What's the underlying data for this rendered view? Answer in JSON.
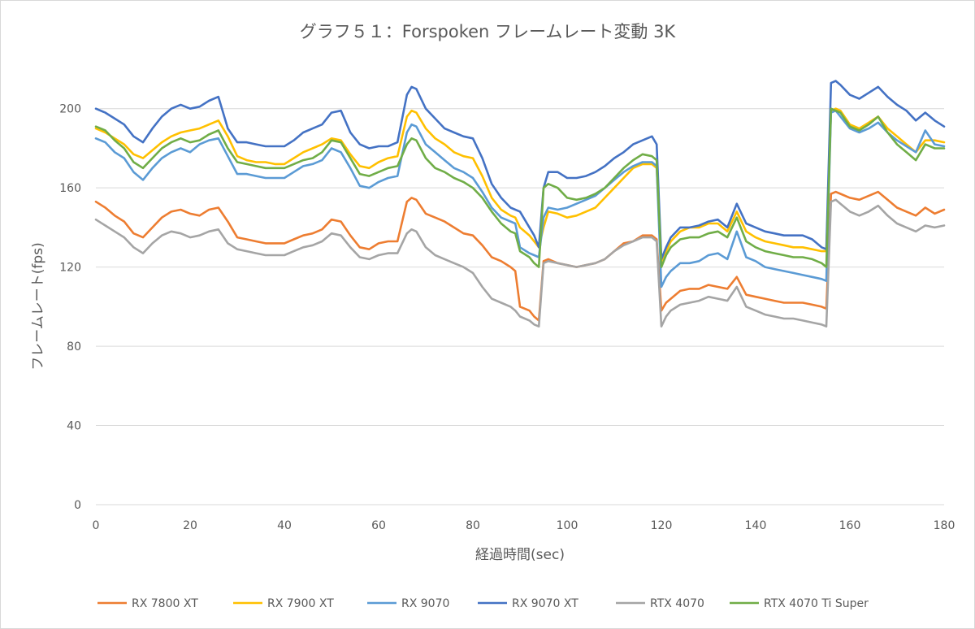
{
  "chart_data": {
    "type": "line",
    "title": "グラフ５１：Forspoken フレームレート変動 3K",
    "xlabel": "経過時間(sec)",
    "ylabel": "フレームレート(fps)",
    "xlim": [
      0,
      180
    ],
    "ylim": [
      0,
      220
    ],
    "x_ticks": [
      "0",
      "20",
      "40",
      "60",
      "80",
      "100",
      "120",
      "140",
      "160",
      "180"
    ],
    "y_ticks": [
      "0",
      "40",
      "80",
      "120",
      "160",
      "200"
    ],
    "grid": true,
    "legend_position": "bottom",
    "x": [
      0,
      2,
      4,
      6,
      8,
      10,
      12,
      14,
      16,
      18,
      20,
      22,
      24,
      26,
      28,
      30,
      32,
      34,
      36,
      38,
      40,
      42,
      44,
      46,
      48,
      50,
      52,
      54,
      56,
      58,
      60,
      62,
      64,
      66,
      67,
      68,
      70,
      72,
      74,
      76,
      78,
      80,
      82,
      84,
      86,
      88,
      89,
      90,
      92,
      93,
      94,
      95,
      96,
      98,
      100,
      102,
      104,
      106,
      108,
      110,
      112,
      114,
      116,
      118,
      119,
      120,
      121,
      122,
      124,
      126,
      128,
      130,
      132,
      134,
      136,
      138,
      140,
      142,
      144,
      146,
      148,
      150,
      152,
      154,
      155,
      156,
      157,
      158,
      160,
      162,
      164,
      166,
      168,
      170,
      172,
      174,
      176,
      178,
      180
    ],
    "series": [
      {
        "name": "RX 7800 XT",
        "color": "#ED7D31",
        "values": [
          153,
          150,
          146,
          143,
          137,
          135,
          140,
          145,
          148,
          149,
          147,
          146,
          149,
          150,
          143,
          135,
          134,
          133,
          132,
          132,
          132,
          134,
          136,
          137,
          139,
          144,
          143,
          136,
          130,
          129,
          132,
          133,
          133,
          153,
          155,
          154,
          147,
          145,
          143,
          140,
          137,
          136,
          131,
          125,
          123,
          120,
          118,
          100,
          98,
          95,
          93,
          123,
          124,
          122,
          121,
          120,
          121,
          122,
          124,
          128,
          132,
          133,
          136,
          136,
          134,
          98,
          102,
          104,
          108,
          109,
          109,
          111,
          110,
          109,
          115,
          106,
          105,
          104,
          103,
          102,
          102,
          102,
          101,
          100,
          99,
          157,
          158,
          157,
          155,
          154,
          156,
          158,
          154,
          150,
          148,
          146,
          150,
          147,
          149
        ]
      },
      {
        "name": "RX 7900 XT",
        "color": "#FFC000",
        "values": [
          190,
          188,
          185,
          182,
          177,
          175,
          179,
          183,
          186,
          188,
          189,
          190,
          192,
          194,
          186,
          176,
          174,
          173,
          173,
          172,
          172,
          175,
          178,
          180,
          182,
          185,
          184,
          177,
          171,
          170,
          173,
          175,
          176,
          196,
          199,
          198,
          190,
          185,
          182,
          178,
          176,
          175,
          166,
          155,
          149,
          146,
          145,
          140,
          136,
          133,
          130,
          140,
          148,
          147,
          145,
          146,
          148,
          150,
          155,
          160,
          165,
          170,
          172,
          172,
          170,
          123,
          128,
          133,
          138,
          140,
          140,
          142,
          142,
          138,
          148,
          138,
          135,
          133,
          132,
          131,
          130,
          130,
          129,
          128,
          128,
          199,
          200,
          199,
          192,
          190,
          193,
          196,
          190,
          186,
          182,
          178,
          184,
          184,
          183
        ]
      },
      {
        "name": "RX 9070",
        "color": "#5B9BD5",
        "values": [
          185,
          183,
          178,
          175,
          168,
          164,
          170,
          175,
          178,
          180,
          178,
          182,
          184,
          185,
          176,
          167,
          167,
          166,
          165,
          165,
          165,
          168,
          171,
          172,
          174,
          180,
          178,
          170,
          161,
          160,
          163,
          165,
          166,
          188,
          192,
          191,
          182,
          178,
          174,
          170,
          168,
          165,
          158,
          150,
          145,
          143,
          142,
          130,
          127,
          126,
          125,
          145,
          150,
          149,
          150,
          152,
          154,
          156,
          160,
          164,
          168,
          171,
          173,
          173,
          171,
          110,
          115,
          118,
          122,
          122,
          123,
          126,
          127,
          124,
          138,
          125,
          123,
          120,
          119,
          118,
          117,
          116,
          115,
          114,
          113,
          198,
          199,
          196,
          190,
          188,
          190,
          193,
          188,
          184,
          181,
          178,
          189,
          182,
          181
        ]
      },
      {
        "name": "RX 9070 XT",
        "color": "#4472C4",
        "values": [
          200,
          198,
          195,
          192,
          186,
          183,
          190,
          196,
          200,
          202,
          200,
          201,
          204,
          206,
          190,
          183,
          183,
          182,
          181,
          181,
          181,
          184,
          188,
          190,
          192,
          198,
          199,
          188,
          182,
          180,
          181,
          181,
          183,
          207,
          211,
          210,
          200,
          195,
          190,
          188,
          186,
          185,
          175,
          162,
          155,
          150,
          149,
          148,
          140,
          136,
          130,
          160,
          168,
          168,
          165,
          165,
          166,
          168,
          171,
          175,
          178,
          182,
          184,
          186,
          182,
          124,
          130,
          135,
          140,
          140,
          141,
          143,
          144,
          140,
          152,
          142,
          140,
          138,
          137,
          136,
          136,
          136,
          134,
          130,
          129,
          213,
          214,
          212,
          207,
          205,
          208,
          211,
          206,
          202,
          199,
          194,
          198,
          194,
          191
        ]
      },
      {
        "name": "RTX 4070",
        "color": "#A5A5A5",
        "values": [
          144,
          141,
          138,
          135,
          130,
          127,
          132,
          136,
          138,
          137,
          135,
          136,
          138,
          139,
          132,
          129,
          128,
          127,
          126,
          126,
          126,
          128,
          130,
          131,
          133,
          137,
          136,
          130,
          125,
          124,
          126,
          127,
          127,
          137,
          139,
          138,
          130,
          126,
          124,
          122,
          120,
          117,
          110,
          104,
          102,
          100,
          98,
          95,
          93,
          91,
          90,
          122,
          123,
          122,
          121,
          120,
          121,
          122,
          124,
          128,
          131,
          133,
          135,
          135,
          133,
          90,
          95,
          98,
          101,
          102,
          103,
          105,
          104,
          103,
          110,
          100,
          98,
          96,
          95,
          94,
          94,
          93,
          92,
          91,
          90,
          153,
          154,
          152,
          148,
          146,
          148,
          151,
          146,
          142,
          140,
          138,
          141,
          140,
          141
        ]
      },
      {
        "name": "RTX 4070 Ti Super",
        "color": "#70AD47",
        "values": [
          191,
          189,
          184,
          180,
          173,
          170,
          175,
          180,
          183,
          185,
          183,
          184,
          187,
          189,
          180,
          173,
          172,
          171,
          170,
          170,
          170,
          172,
          174,
          175,
          178,
          184,
          183,
          175,
          167,
          166,
          168,
          170,
          171,
          182,
          185,
          184,
          175,
          170,
          168,
          165,
          163,
          160,
          155,
          148,
          142,
          138,
          137,
          128,
          125,
          122,
          120,
          160,
          162,
          160,
          155,
          154,
          155,
          157,
          160,
          165,
          170,
          174,
          177,
          176,
          174,
          120,
          126,
          130,
          134,
          135,
          135,
          137,
          138,
          135,
          145,
          133,
          130,
          128,
          127,
          126,
          125,
          125,
          124,
          122,
          120,
          200,
          199,
          198,
          191,
          189,
          192,
          196,
          188,
          182,
          178,
          174,
          182,
          180,
          180
        ]
      }
    ]
  }
}
